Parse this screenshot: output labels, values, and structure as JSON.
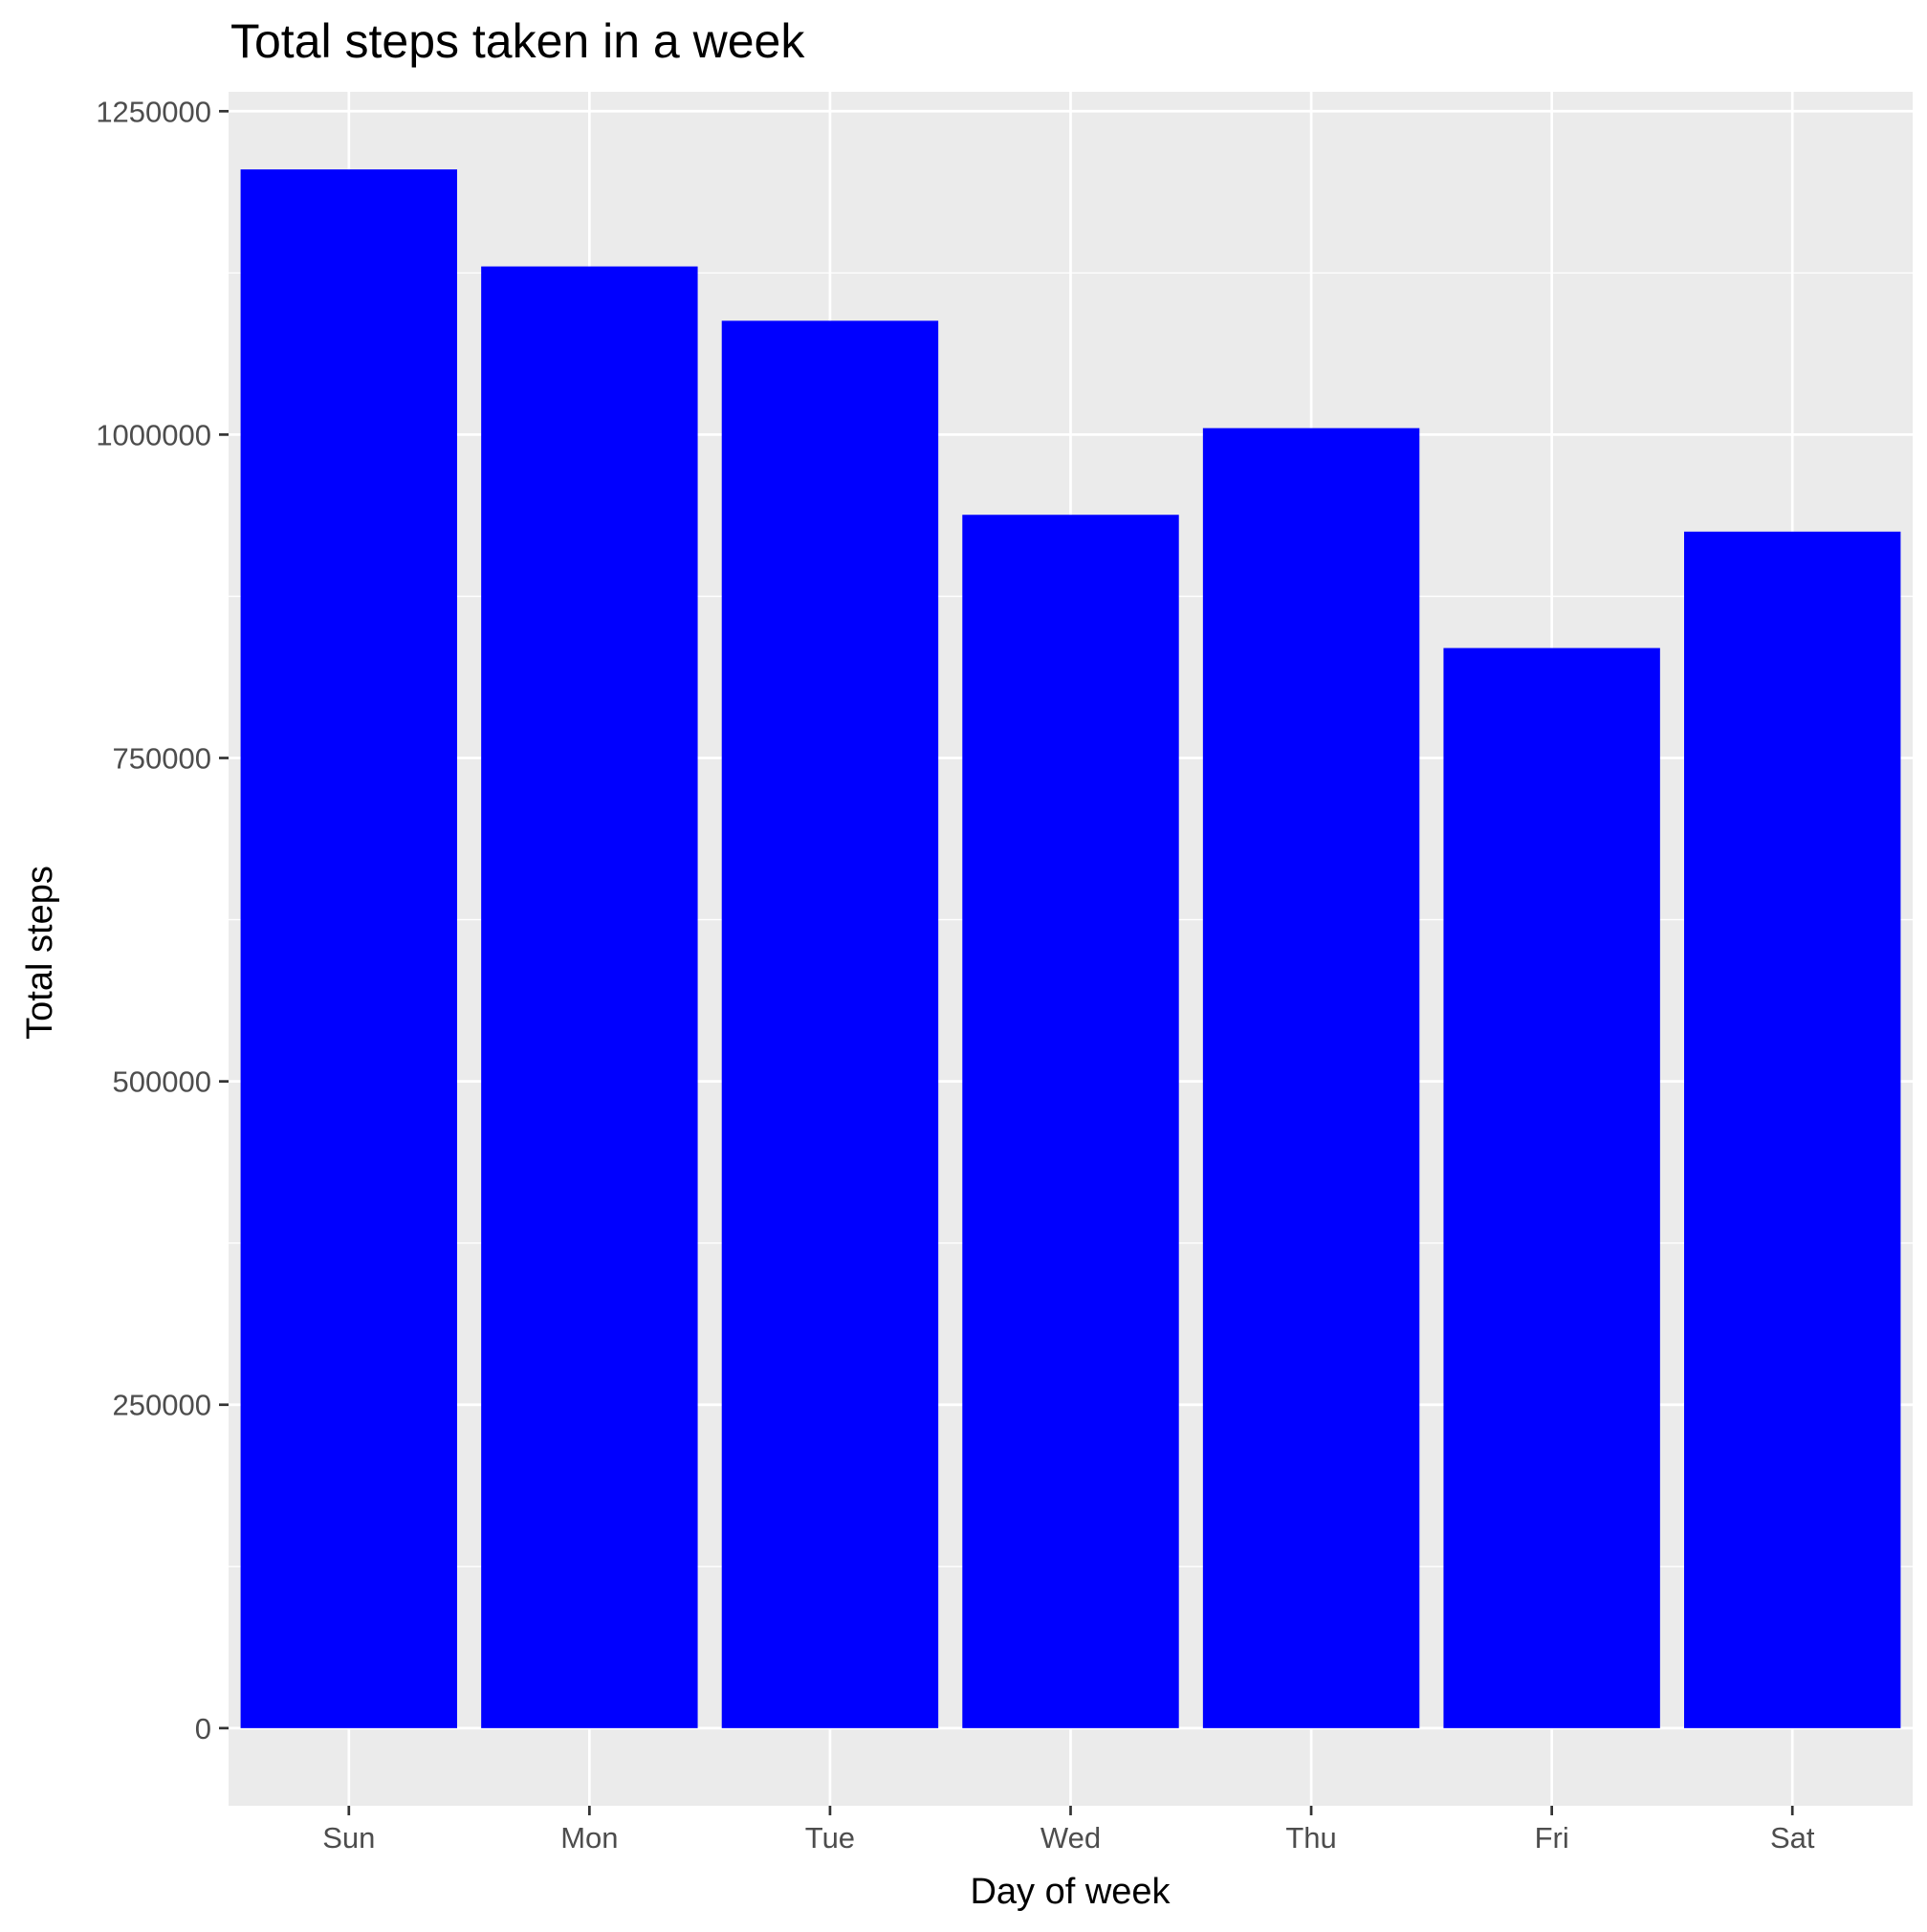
{
  "chart_data": {
    "type": "bar",
    "title": "Total steps taken in a week",
    "xlabel": "Day of week",
    "ylabel": "Total steps",
    "categories": [
      "Sun",
      "Mon",
      "Tue",
      "Wed",
      "Thu",
      "Fri",
      "Sat"
    ],
    "values": [
      1205000,
      1130000,
      1088000,
      938000,
      1005000,
      835000,
      925000
    ],
    "ylim": [
      -60000,
      1265000
    ],
    "yticks": [
      0,
      250000,
      500000,
      750000,
      1000000,
      1250000
    ],
    "ytick_labels": [
      "0",
      "250000",
      "500000",
      "750000",
      "1000000",
      "1250000"
    ],
    "grid": true,
    "legend": "none",
    "colors": {
      "bar": "#0000ff",
      "panel_background": "#ebebeb",
      "grid": "#ffffff",
      "tick": "#333333"
    }
  }
}
